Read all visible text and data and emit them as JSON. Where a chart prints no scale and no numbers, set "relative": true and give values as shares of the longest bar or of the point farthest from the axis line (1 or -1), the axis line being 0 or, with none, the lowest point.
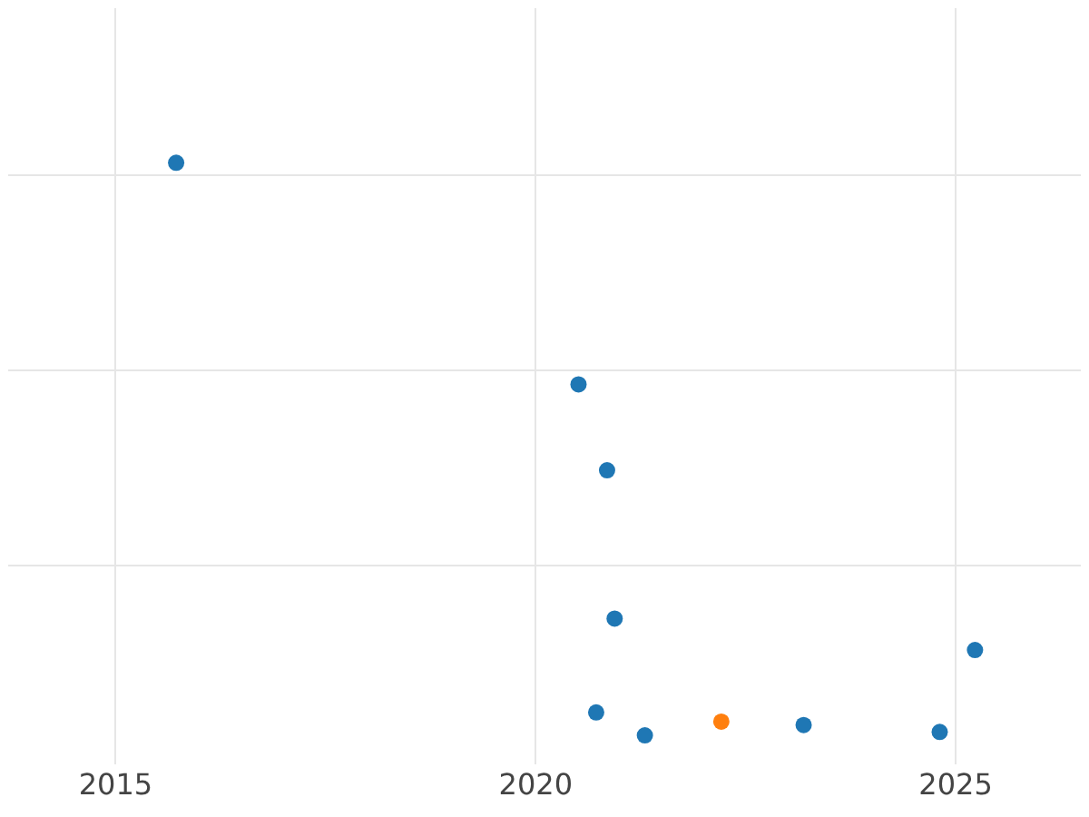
{
  "chart_data": {
    "type": "scatter",
    "relative": true,
    "grid": true,
    "marker": "circle",
    "xlim": [
      2013.72,
      2026.49
    ],
    "xticks": [
      2015,
      2020,
      2025
    ],
    "series": [
      {
        "color": "#1f77b4",
        "x": [
          2015.72,
          2020.51,
          2020.85,
          2020.94,
          2025.23,
          2020.72,
          2021.3,
          2023.19,
          2024.81
        ],
        "values": [
          1,
          0.613,
          0.463,
          0.204,
          0.149,
          0.04,
          0,
          0.018,
          0.006
        ]
      },
      {
        "color": "#ff7f0e",
        "x": [
          2022.21
        ],
        "values": [
          0.024
        ]
      }
    ]
  }
}
